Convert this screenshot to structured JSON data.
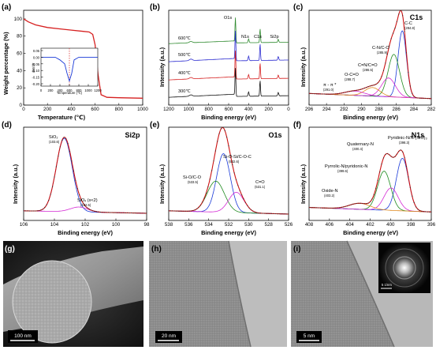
{
  "panels": {
    "a": {
      "label": "(a)",
      "ylabel": "Weight percentage (%)",
      "xlabel": "Temperature (℃)",
      "yticks": [
        "0",
        "20",
        "40",
        "60",
        "80",
        "100"
      ],
      "xticks": [
        "0",
        "200",
        "400",
        "600",
        "800",
        "1000"
      ],
      "inset": {
        "ylabel": "dW/dT",
        "xlabel": "Temperature (℃)",
        "yticks": [
          "0.05",
          "0.00",
          "-0.05",
          "-0.10",
          "-0.15",
          "-0.20"
        ],
        "xticks": [
          "0",
          "200",
          "400",
          "600",
          "800",
          "1000",
          "1200"
        ]
      }
    },
    "b": {
      "label": "(b)",
      "ylabel": "Intensity (a.u.)",
      "xlabel": "Binding energy (eV)",
      "xticks": [
        "1200",
        "1000",
        "800",
        "600",
        "400",
        "200",
        "0"
      ],
      "peaks": [
        "O1s",
        "N1s",
        "C1s",
        "Si2p"
      ],
      "traces": [
        "600℃",
        "500℃",
        "400℃",
        "300℃"
      ]
    },
    "c": {
      "label": "(c)",
      "title": "C1s",
      "ylabel": "Intensity (a.u.)",
      "xlabel": "Binding energy (eV)",
      "xticks": [
        "296",
        "294",
        "292",
        "290",
        "288",
        "286",
        "284",
        "282"
      ],
      "ann": [
        {
          "name": "C-C",
          "value": "(284.8)"
        },
        {
          "name": "C-N/C-O",
          "value": "(285.9)"
        },
        {
          "name": "C=N/C=O",
          "value": "(286.5)"
        },
        {
          "name": "O-C=O",
          "value": "(288.7)"
        },
        {
          "name": "π - π *",
          "value": "(291.0)"
        }
      ]
    },
    "d": {
      "label": "(d)",
      "title": "Si2p",
      "ylabel": "Intensity (a.u.)",
      "xlabel": "Binding energy (eV)",
      "xticks": [
        "106",
        "104",
        "102",
        "100",
        "98"
      ],
      "ann": [
        {
          "name": "SiO₂",
          "value": "(103.6)"
        },
        {
          "name": "SiOₓ (x<2)",
          "value": "(102.5)"
        }
      ]
    },
    "e": {
      "label": "(e)",
      "title": "O1s",
      "ylabel": "Intensity (a.u.)",
      "xlabel": "Binding energy (eV)",
      "xticks": [
        "538",
        "536",
        "534",
        "532",
        "530",
        "528",
        "526"
      ],
      "ann": [
        {
          "name": "Si-O-Si/C-O-C",
          "value": "(532.6)"
        },
        {
          "name": "Si-O/C-O",
          "value": "(533.5)"
        },
        {
          "name": "C=O",
          "value": "(531.1)"
        }
      ]
    },
    "f": {
      "label": "(f)",
      "title": "N1s",
      "ylabel": "Intensity (a.u.)",
      "xlabel": "Binding energy (eV)",
      "xticks": [
        "408",
        "406",
        "404",
        "402",
        "400",
        "398",
        "396"
      ],
      "ann": [
        {
          "name": "Pyridinic-N/N-(SiO)₃",
          "value": "(398.3)"
        },
        {
          "name": "Quaternary-N",
          "value": "(400.4)"
        },
        {
          "name": "Pyrrolic-N/pyridonic-N",
          "value": "(399.6)"
        },
        {
          "name": "Oxide-N",
          "value": "(403.2)"
        }
      ]
    },
    "g": {
      "label": "(g)",
      "scale": "100 nm"
    },
    "h": {
      "label": "(h)",
      "scale": "20 nm"
    },
    "i": {
      "label": "(i)",
      "scale": "5 nm",
      "inset_scale": "5 1/nm"
    }
  },
  "colors": {
    "trace_600": "#2f8a2f",
    "trace_500": "#2b2bd0",
    "trace_400": "#d62020",
    "trace_300": "#111111",
    "fit_red": "#cc1111",
    "fit_blue": "#1a3ad8",
    "fit_green": "#1f8a1f",
    "fit_magenta": "#d42ad4",
    "fit_orange": "#e08a20"
  },
  "chart_data": [
    {
      "type": "line",
      "panel": "a",
      "x": [
        0,
        40,
        100,
        200,
        300,
        400,
        500,
        550,
        580,
        600,
        625,
        650,
        700,
        800,
        1000
      ],
      "values": [
        100,
        96.5,
        93,
        90,
        88.5,
        87,
        85.5,
        84.8,
        82,
        70,
        35,
        12,
        9,
        8.5,
        8
      ],
      "xlim": [
        0,
        1000
      ],
      "ylim": [
        0,
        110
      ],
      "xlabel": "Temperature (℃)",
      "ylabel": "Weight percentage (%)"
    },
    {
      "type": "line",
      "panel": "a-inset",
      "x": [
        0,
        100,
        200,
        300,
        400,
        500,
        550,
        600,
        650,
        700,
        800,
        1000,
        1200
      ],
      "values": [
        0.0,
        0.0,
        0.0,
        0.0,
        -0.02,
        -0.05,
        -0.12,
        -0.18,
        -0.12,
        -0.02,
        0.0,
        0.0,
        0.0
      ],
      "xlim": [
        0,
        1200
      ],
      "ylim": [
        -0.2,
        0.05
      ]
    },
    {
      "type": "line",
      "panel": "b",
      "xlim": [
        1200,
        0
      ],
      "series": [
        {
          "name": "600℃",
          "offset": 3
        },
        {
          "name": "500℃",
          "offset": 2
        },
        {
          "name": "400℃",
          "offset": 1
        },
        {
          "name": "300℃",
          "offset": 0
        }
      ],
      "peak_positions": {
        "O1s": 532,
        "N1s": 400,
        "C1s": 285,
        "Si2p": 103
      }
    }
  ]
}
